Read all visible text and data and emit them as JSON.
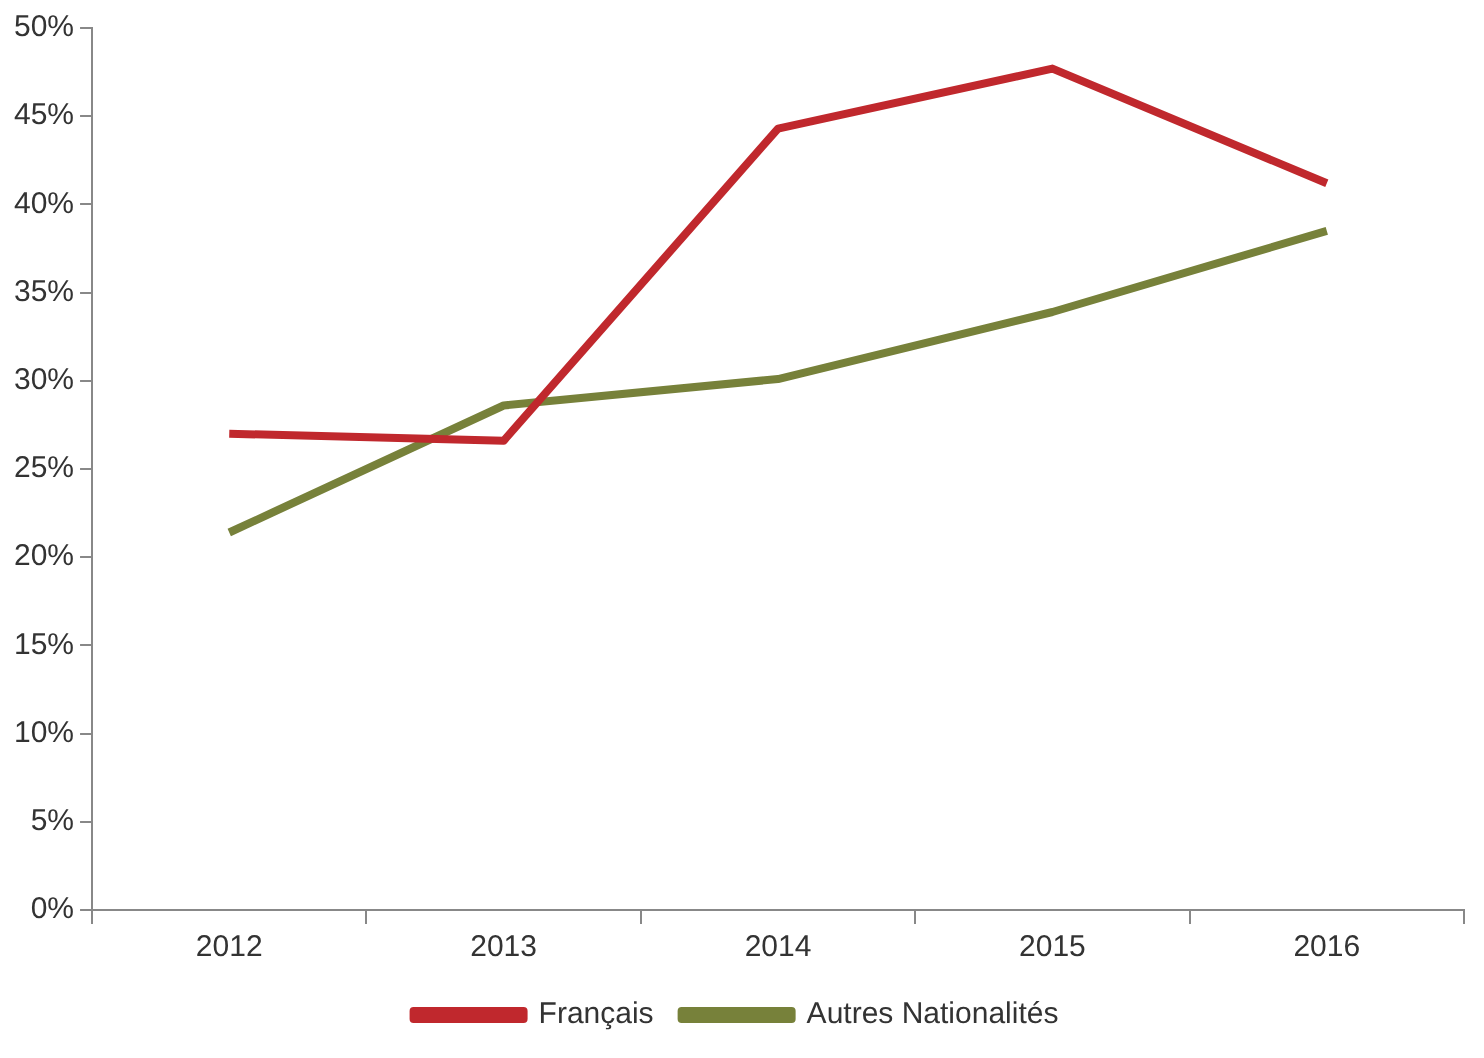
{
  "chart_data": {
    "type": "line",
    "categories": [
      "2012",
      "2013",
      "2014",
      "2015",
      "2016"
    ],
    "series": [
      {
        "name": "Français",
        "color": "#c0282d",
        "values": [
          27.0,
          26.6,
          44.3,
          47.7,
          41.2
        ]
      },
      {
        "name": "Autres Nationalités",
        "color": "#77813a",
        "values": [
          21.4,
          28.6,
          30.1,
          33.9,
          38.5
        ]
      }
    ],
    "ylim": [
      0,
      50
    ],
    "yticks": [
      {
        "value": 0,
        "label": "0%"
      },
      {
        "value": 5,
        "label": "5%"
      },
      {
        "value": 10,
        "label": "10%"
      },
      {
        "value": 15,
        "label": "15%"
      },
      {
        "value": 20,
        "label": "20%"
      },
      {
        "value": 25,
        "label": "25%"
      },
      {
        "value": 30,
        "label": "30%"
      },
      {
        "value": 35,
        "label": "35%"
      },
      {
        "value": 40,
        "label": "40%"
      },
      {
        "value": 45,
        "label": "45%"
      },
      {
        "value": 50,
        "label": "50%"
      }
    ],
    "grid": false,
    "legend": "bottom",
    "marker": "none",
    "line_style": "solid"
  }
}
